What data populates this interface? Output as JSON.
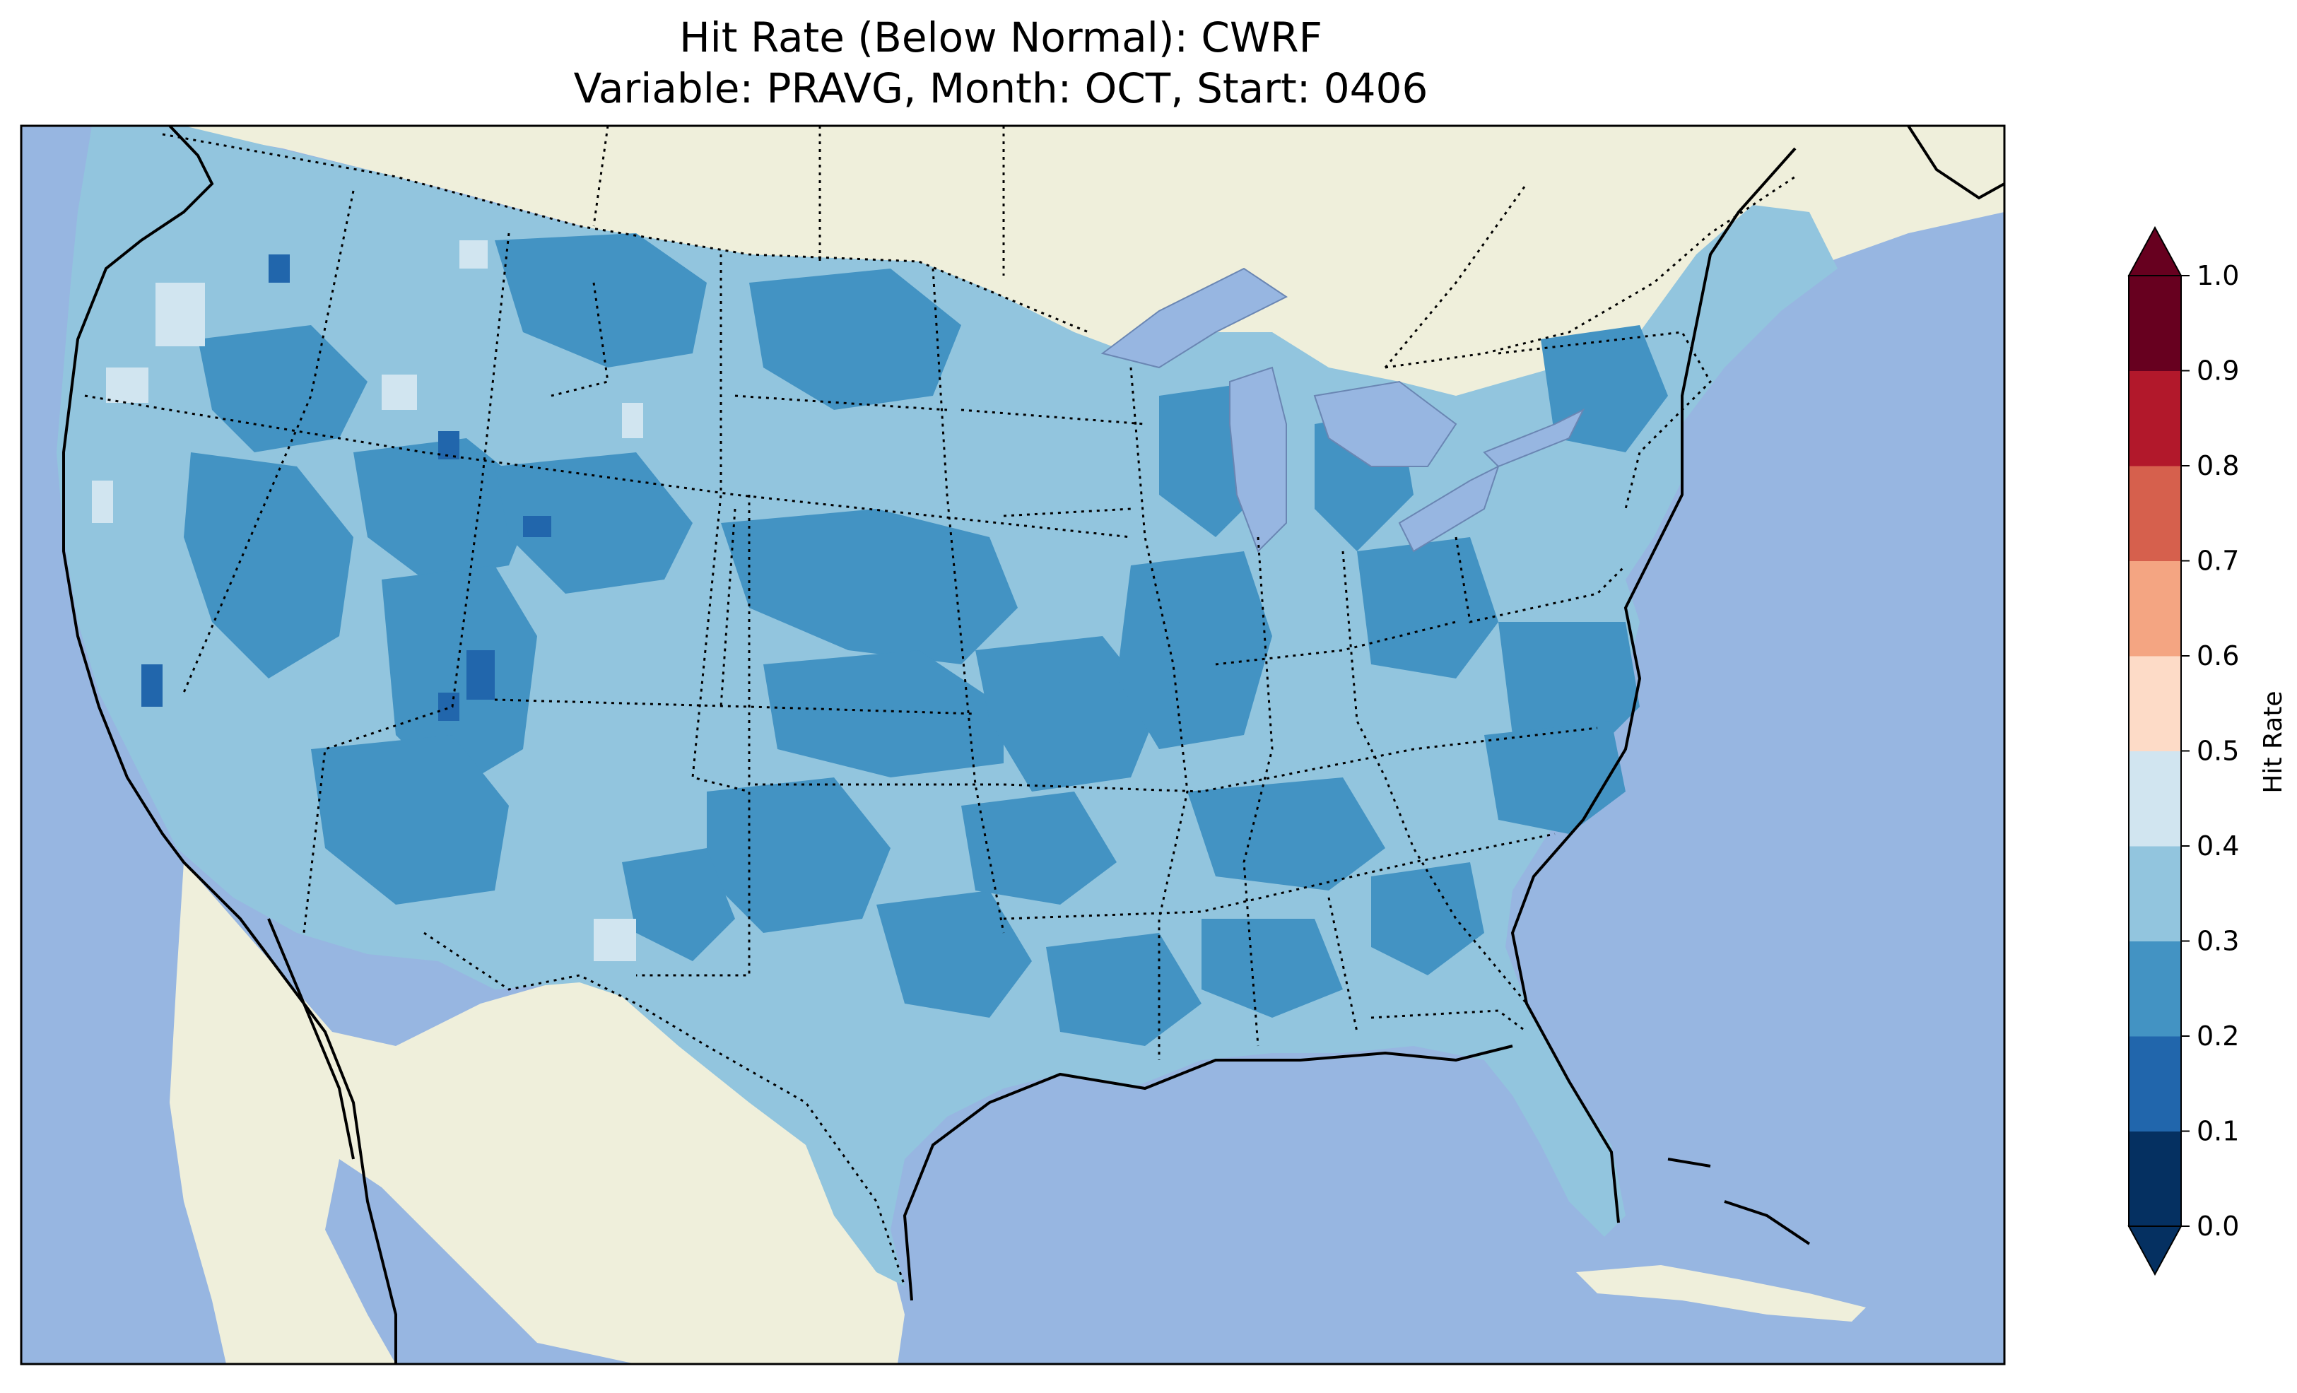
{
  "title": {
    "line1": "Hit Rate (Below Normal): CWRF",
    "line2": "Variable: PRAVG, Month: OCT, Start: 0406"
  },
  "colorbar": {
    "label": "Hit Rate",
    "levels": [
      0.0,
      0.1,
      0.2,
      0.3,
      0.4,
      0.5,
      0.6,
      0.7,
      0.8,
      0.9,
      1.0
    ],
    "tick_labels": [
      "0.0",
      "0.1",
      "0.2",
      "0.3",
      "0.4",
      "0.5",
      "0.6",
      "0.7",
      "0.8",
      "0.9",
      "1.0"
    ],
    "colors": [
      "#053061",
      "#2166ac",
      "#4393c3",
      "#92c5de",
      "#d1e5f0",
      "#fddbc7",
      "#f4a582",
      "#d6604d",
      "#b2182b",
      "#67001f"
    ],
    "extend": "both"
  },
  "map": {
    "ocean_color": "#97b6e1",
    "land_color": "#efefdb",
    "lake_color": "#97b6e1",
    "hit_rate_fill_colors": {
      "0.1-0.2": "#2166ac",
      "0.2-0.3": "#4393c3",
      "0.3-0.4": "#92c5de",
      "0.4-0.5": "#d1e5f0"
    }
  }
}
